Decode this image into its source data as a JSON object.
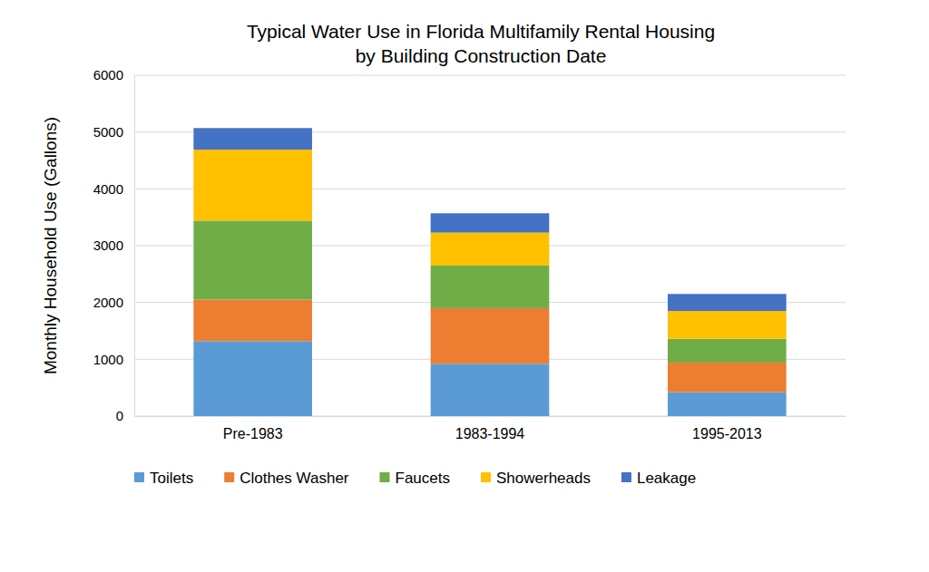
{
  "chart_data": {
    "type": "bar",
    "title": "Typical Water Use in Florida Multifamily Rental Housing\nby Building Construction Date",
    "y_label": "Monthly Household Use (Gallons)",
    "categories": [
      "Pre-1983",
      "1983-1994",
      "1995-2013"
    ],
    "series": [
      {
        "name": "Toilets",
        "color": "#5b9bd5",
        "values": [
          1320,
          920,
          420
        ]
      },
      {
        "name": "Clothes Washer",
        "color": "#ed7d31",
        "values": [
          730,
          980,
          520
        ]
      },
      {
        "name": "Faucets",
        "color": "#70ad47",
        "values": [
          1390,
          750,
          420
        ]
      },
      {
        "name": "Showerheads",
        "color": "#ffc000",
        "values": [
          1250,
          580,
          490
        ]
      },
      {
        "name": "Leakage",
        "color": "#4472c4",
        "values": [
          380,
          340,
          300
        ]
      }
    ],
    "ylim": [
      0,
      6000
    ],
    "yticks": [
      0,
      1000,
      2000,
      3000,
      4000,
      5000,
      6000
    ],
    "stacked": true,
    "grid": true,
    "legend": "bottom"
  }
}
